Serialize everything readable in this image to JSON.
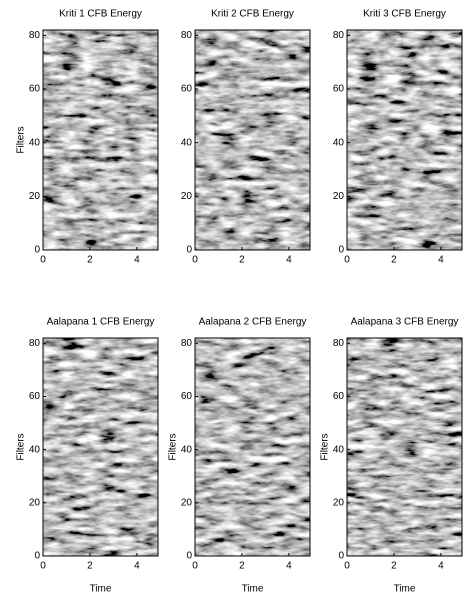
{
  "chart_data": [
    {
      "type": "heatmap",
      "title": "Kriti 1 CFB Energy",
      "ylabel": "Filters",
      "xlim": [
        0,
        4.9
      ],
      "ylim": [
        0,
        82
      ],
      "xticks": [
        0,
        2,
        4
      ],
      "yticks": [
        0,
        20,
        40,
        60,
        80
      ],
      "colormap": "gray"
    },
    {
      "type": "heatmap",
      "title": "Kriti 2 CFB Energy",
      "xlim": [
        0,
        4.9
      ],
      "ylim": [
        0,
        82
      ],
      "xticks": [
        0,
        2,
        4
      ],
      "yticks": [
        0,
        20,
        40,
        60,
        80
      ],
      "colormap": "gray"
    },
    {
      "type": "heatmap",
      "title": "Kriti 3 CFB Energy",
      "xlim": [
        0,
        4.9
      ],
      "ylim": [
        0,
        82
      ],
      "xticks": [
        0,
        2,
        4
      ],
      "yticks": [
        0,
        20,
        40,
        60,
        80
      ],
      "colormap": "gray"
    },
    {
      "type": "heatmap",
      "title": "Aalapana 1 CFB Energy",
      "xlabel": "Time",
      "ylabel": "Filters",
      "xlim": [
        0,
        4.9
      ],
      "ylim": [
        0,
        82
      ],
      "xticks": [
        0,
        2,
        4
      ],
      "yticks": [
        0,
        20,
        40,
        60,
        80
      ],
      "colormap": "gray"
    },
    {
      "type": "heatmap",
      "title": "Aalapana 2 CFB Energy",
      "xlabel": "Time",
      "ylabel": "Filters",
      "xlim": [
        0,
        4.9
      ],
      "ylim": [
        0,
        82
      ],
      "xticks": [
        0,
        2,
        4
      ],
      "yticks": [
        0,
        20,
        40,
        60,
        80
      ],
      "colormap": "gray"
    },
    {
      "type": "heatmap",
      "title": "Aalapana 3 CFB Energy",
      "xlabel": "Time",
      "ylabel": "Filters",
      "xlim": [
        0,
        4.9
      ],
      "ylim": [
        0,
        82
      ],
      "xticks": [
        0,
        2,
        4
      ],
      "yticks": [
        0,
        20,
        40,
        60,
        80
      ],
      "colormap": "gray"
    }
  ]
}
